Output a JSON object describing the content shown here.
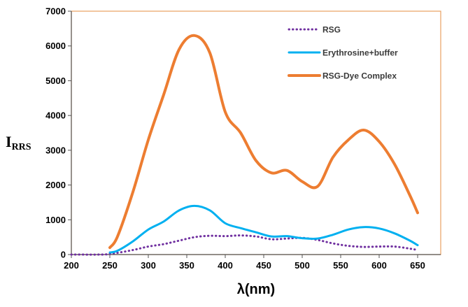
{
  "chart_data": {
    "type": "line",
    "title": "",
    "xlabel": "λ(nm)",
    "ylabel_main": "I",
    "ylabel_sub": "RRS",
    "xlim": [
      200,
      680
    ],
    "ylim": [
      0,
      7000
    ],
    "xticks": [
      200,
      250,
      300,
      350,
      400,
      450,
      500,
      550,
      600,
      650
    ],
    "yticks": [
      0,
      1000,
      2000,
      3000,
      4000,
      5000,
      6000,
      7000
    ],
    "grid": false,
    "legend_position": "top-right",
    "frame_color": "#e8a060",
    "series": [
      {
        "name": "RSG",
        "color": "#7030a0",
        "style": "dotted",
        "x": [
          200,
          240,
          250,
          260,
          280,
          300,
          320,
          340,
          360,
          380,
          400,
          420,
          440,
          460,
          480,
          500,
          520,
          540,
          560,
          580,
          600,
          620,
          640,
          650
        ],
        "y": [
          0,
          0,
          20,
          50,
          130,
          230,
          300,
          400,
          500,
          540,
          530,
          550,
          520,
          440,
          460,
          480,
          420,
          320,
          250,
          220,
          230,
          230,
          170,
          130
        ]
      },
      {
        "name": "Erythrosine+buffer",
        "color": "#00b0f0",
        "style": "solid",
        "x": [
          250,
          260,
          280,
          300,
          320,
          340,
          360,
          380,
          400,
          420,
          440,
          460,
          480,
          500,
          520,
          540,
          560,
          580,
          600,
          620,
          640,
          650
        ],
        "y": [
          60,
          110,
          380,
          720,
          950,
          1270,
          1400,
          1270,
          900,
          760,
          640,
          520,
          530,
          470,
          460,
          570,
          720,
          790,
          750,
          610,
          400,
          270
        ]
      },
      {
        "name": "RSG-Dye Complex",
        "color": "#ed7d31",
        "style": "solid",
        "x": [
          250,
          260,
          280,
          300,
          320,
          340,
          360,
          380,
          400,
          420,
          440,
          460,
          480,
          500,
          520,
          540,
          560,
          580,
          600,
          620,
          640,
          650
        ],
        "y": [
          200,
          520,
          1800,
          3300,
          4600,
          5900,
          6300,
          5800,
          4100,
          3500,
          2700,
          2350,
          2420,
          2100,
          1960,
          2800,
          3300,
          3580,
          3250,
          2600,
          1700,
          1200
        ]
      }
    ]
  }
}
